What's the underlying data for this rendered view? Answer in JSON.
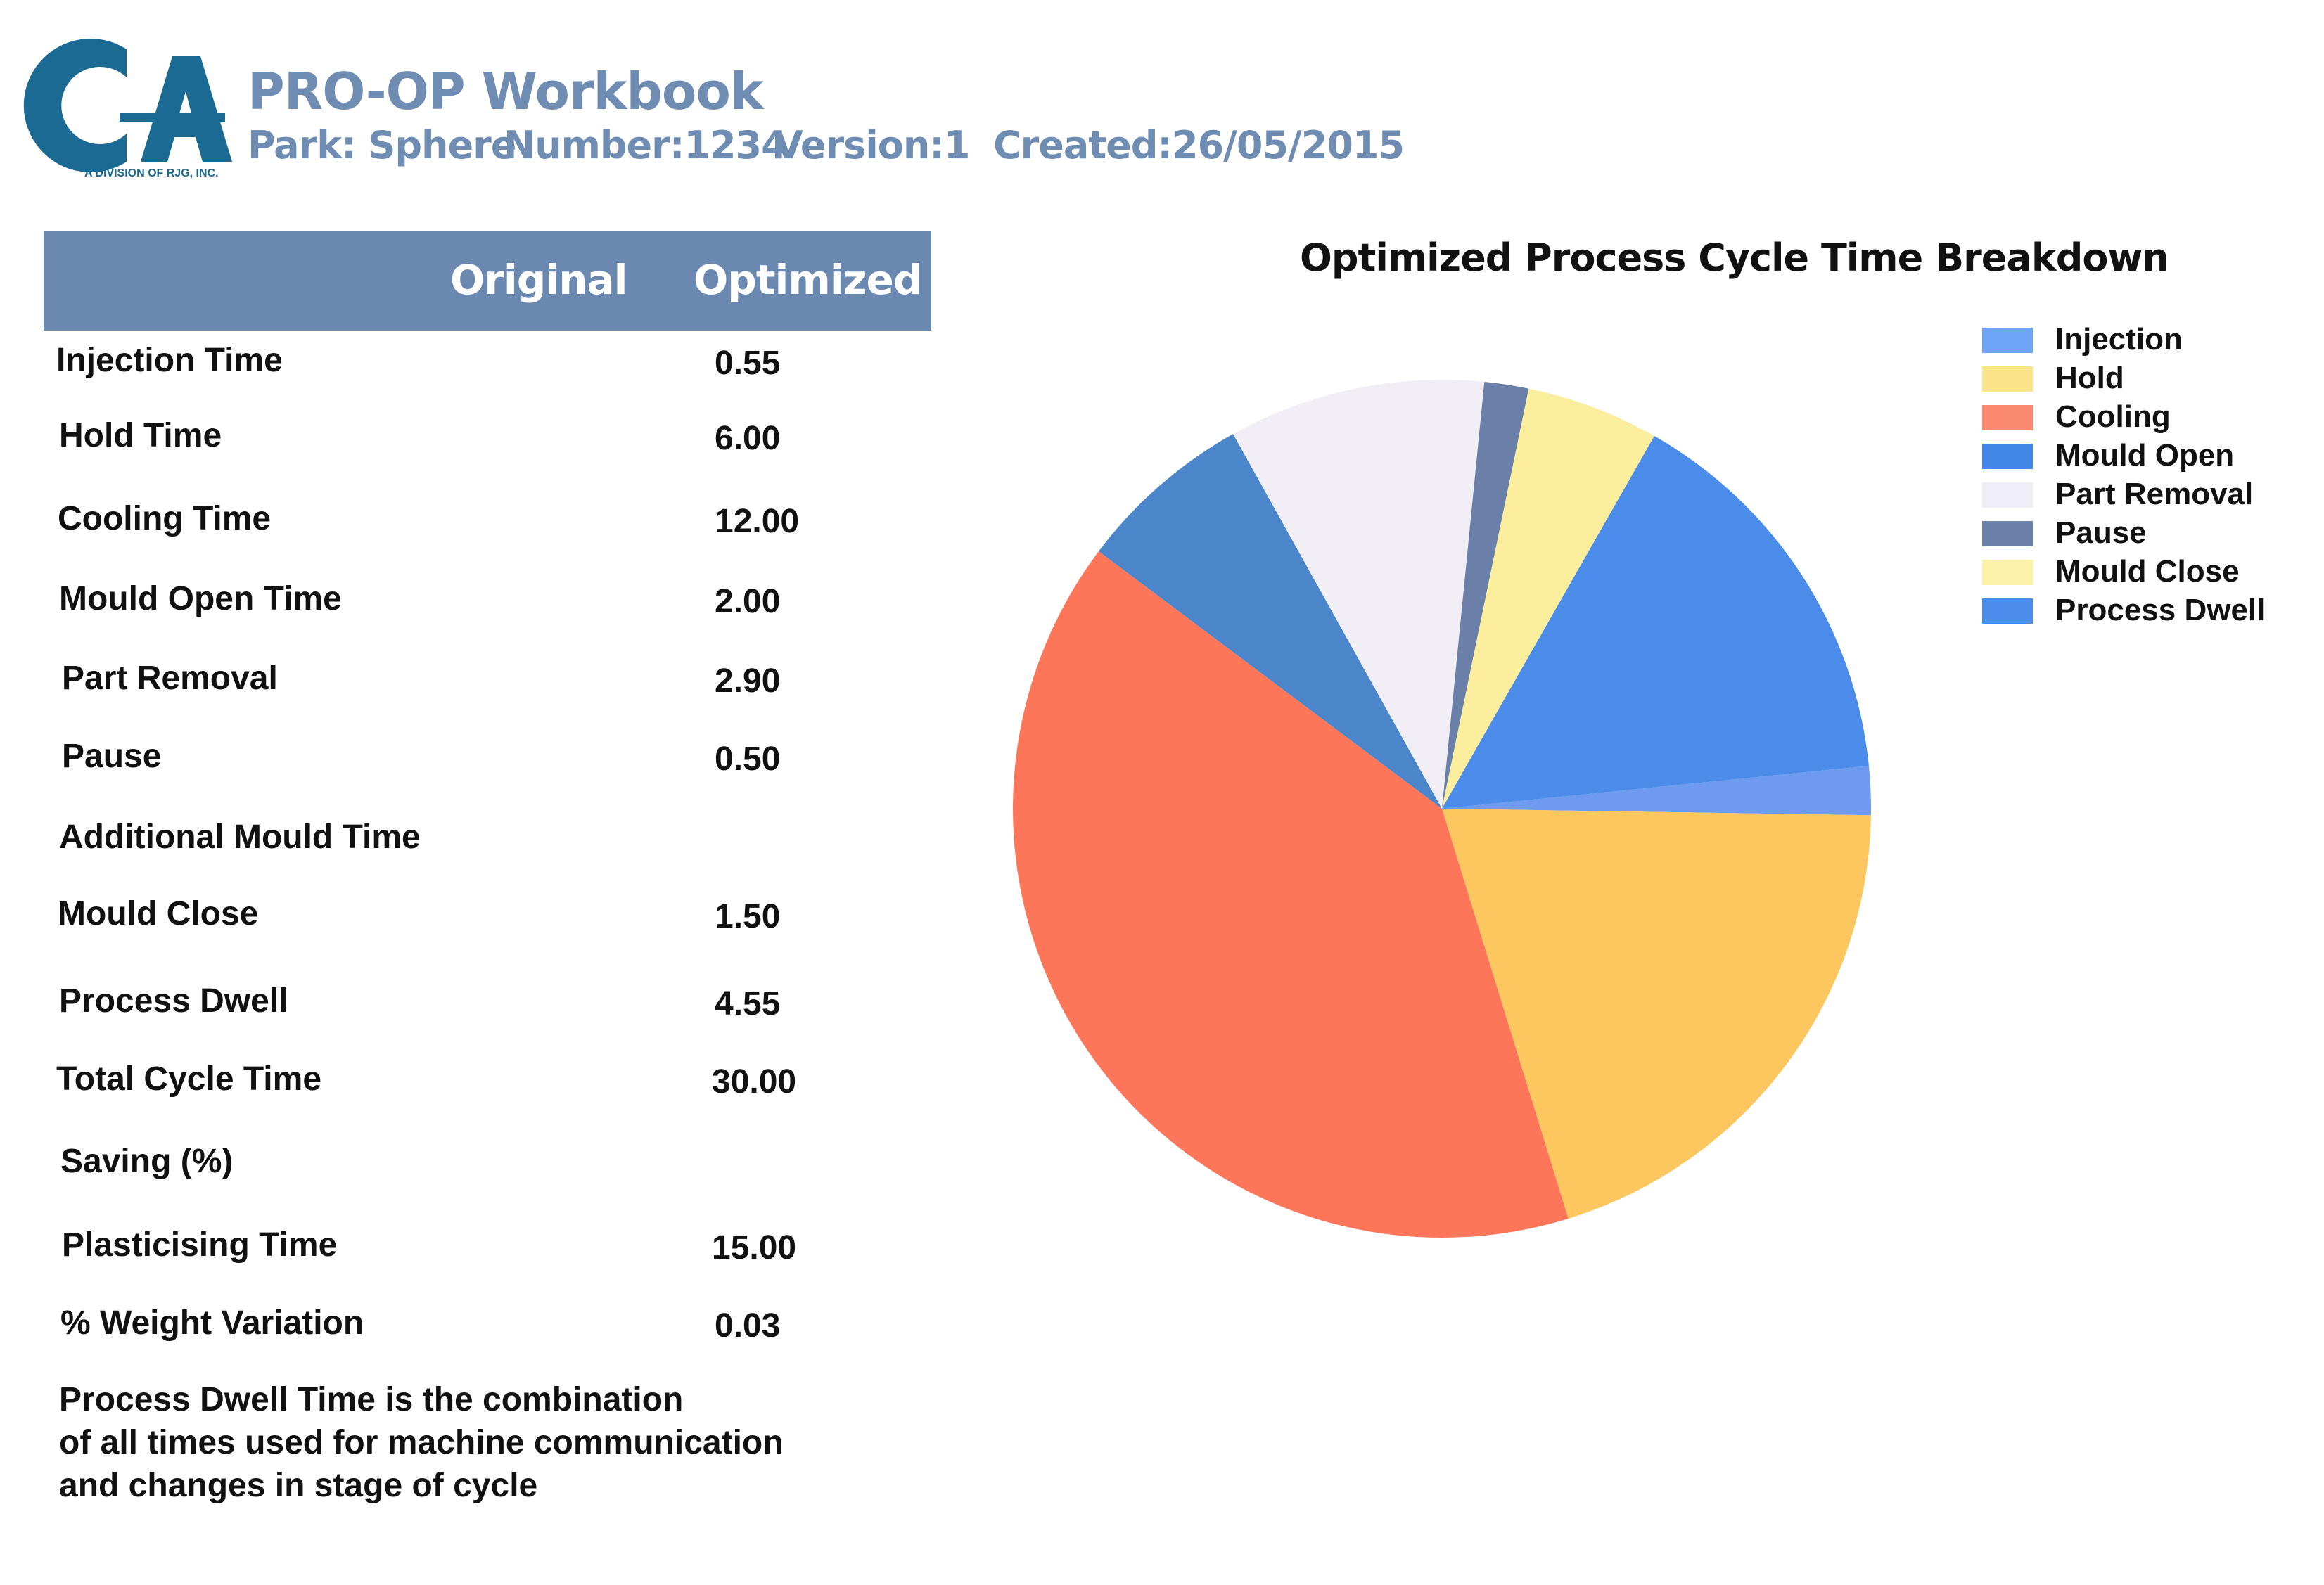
{
  "header": {
    "title": "PRO-OP Workbook",
    "park": "Park: Sphere",
    "number": "Number:1234",
    "version": "Version:1",
    "created": "Created:26/05/2015"
  },
  "logo": {
    "text": "CA",
    "subtext": "A DIVISION OF RJG, INC.",
    "color": "#1a6a93"
  },
  "table": {
    "col_original": "Original",
    "col_optimized": "Optimized",
    "rows": [
      {
        "label": "Injection Time",
        "optimized": "0.55"
      },
      {
        "label": "Hold Time",
        "optimized": "6.00"
      },
      {
        "label": "Cooling Time",
        "optimized": "12.00"
      },
      {
        "label": "Mould Open Time",
        "optimized": "2.00"
      },
      {
        "label": "Part Removal",
        "optimized": "2.90"
      },
      {
        "label": "Pause",
        "optimized": "0.50"
      },
      {
        "label": "Additional Mould Time",
        "optimized": ""
      },
      {
        "label": "Mould Close",
        "optimized": "1.50"
      },
      {
        "label": "Process Dwell",
        "optimized": "4.55"
      },
      {
        "label": "Total Cycle Time",
        "optimized": "30.00"
      },
      {
        "label": "Saving  (%)",
        "optimized": ""
      },
      {
        "label": "Plasticising Time",
        "optimized": "15.00"
      },
      {
        "label": "% Weight Variation",
        "optimized": "0.03"
      }
    ]
  },
  "note": {
    "line1": "Process Dwell Time is the combination",
    "line2": "of all times used for machine communication",
    "line3": "and changes in stage of cycle"
  },
  "chart_data": {
    "type": "pie",
    "title": "Optimized Process Cycle Time Breakdown",
    "legend_position": "top-right",
    "categories": [
      "Injection",
      "Hold",
      "Cooling",
      "Mould Open",
      "Part Removal",
      "Pause",
      "Mould Close",
      "Process Dwell"
    ],
    "values": [
      0.55,
      6.0,
      12.0,
      2.0,
      2.9,
      0.5,
      1.5,
      4.55
    ],
    "colors": [
      "#6e9bef",
      "#fbc75e",
      "#fd7659",
      "#4a86c9",
      "#f1eef6",
      "#6a80a8",
      "#fbee9c",
      "#4b8ceb"
    ],
    "legend_colors": [
      "#6ea3f5",
      "#fbe389",
      "#fb8a70",
      "#3f86e6",
      "#efedf5",
      "#6a80a8",
      "#fbf1a8",
      "#4b8ceb"
    ]
  }
}
